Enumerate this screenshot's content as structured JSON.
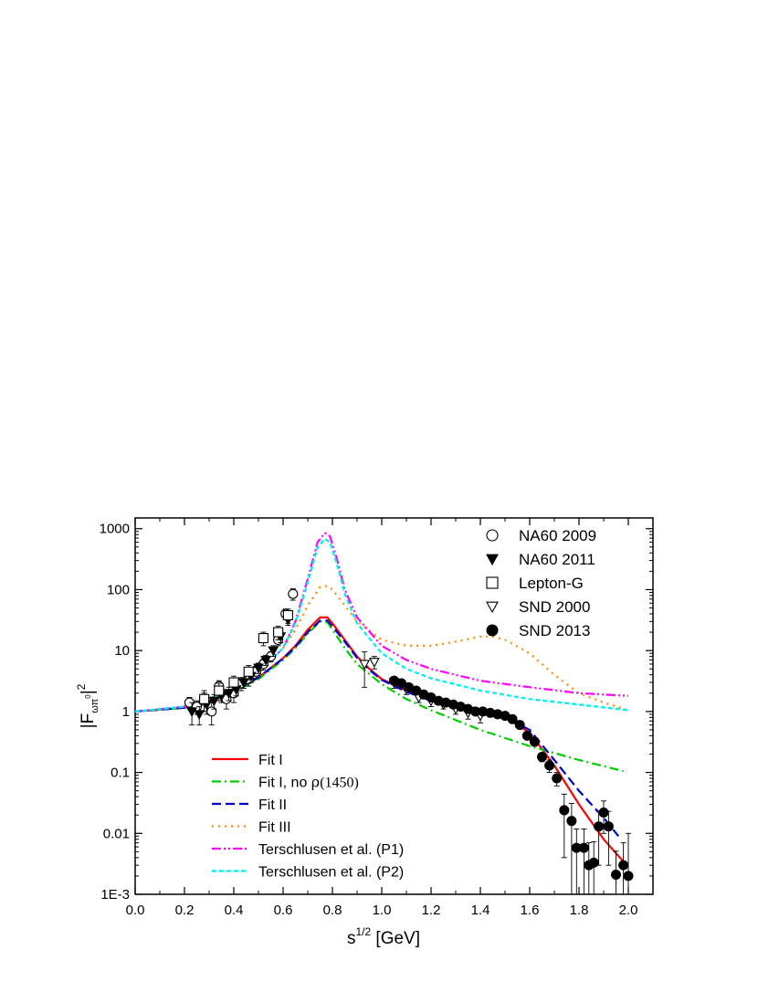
{
  "chart_data": {
    "type": "line",
    "title": "",
    "xlabel": "s",
    "xlabel_sup": "1/2",
    "xlabel_unit": " [GeV]",
    "ylabel": "|F",
    "ylabel_sub": "ωπ",
    "ylabel_subsup": "0",
    "ylabel_close": "|",
    "ylabel_sup": "2",
    "xlim": [
      0.0,
      2.1
    ],
    "ylim": [
      0.001,
      1500
    ],
    "yscale": "log",
    "xticks": [
      0.0,
      0.2,
      0.4,
      0.6,
      0.8,
      1.0,
      1.2,
      1.4,
      1.6,
      1.8,
      2.0
    ],
    "xtick_labels": [
      "0.0",
      "0.2",
      "0.4",
      "0.6",
      "0.8",
      "1.0",
      "1.2",
      "1.4",
      "1.6",
      "1.8",
      "2.0"
    ],
    "yticks": [
      0.001,
      0.01,
      0.1,
      1,
      10,
      100,
      1000
    ],
    "ytick_labels": [
      "1E-3",
      "0.01",
      "0.1",
      "1",
      "10",
      "100",
      "1000"
    ],
    "grid": false,
    "legend_data_position": "top-right",
    "legend_fits_position": "bottom-left",
    "data_series": [
      {
        "name": "NA60 2009",
        "marker": "open-circle",
        "x": [
          0.22,
          0.25,
          0.28,
          0.31,
          0.34,
          0.37,
          0.4,
          0.43,
          0.46,
          0.49,
          0.52,
          0.55,
          0.58,
          0.61,
          0.64
        ],
        "y": [
          1.4,
          1.2,
          1.5,
          1.0,
          2.6,
          1.6,
          2.0,
          2.9,
          3.4,
          4.5,
          6.0,
          8.0,
          15.0,
          40.0,
          85.0
        ],
        "yerr": [
          0.3,
          0.3,
          0.5,
          0.4,
          0.6,
          0.5,
          0.6,
          0.7,
          0.8,
          1.0,
          1.2,
          1.5,
          3.0,
          8.0,
          18.0
        ]
      },
      {
        "name": "NA60 2011",
        "marker": "filled-triangle-down",
        "x": [
          0.23,
          0.26,
          0.29,
          0.32,
          0.35,
          0.38,
          0.41,
          0.44,
          0.47,
          0.5,
          0.53,
          0.56,
          0.59,
          0.62
        ],
        "y": [
          1.0,
          0.9,
          1.3,
          1.5,
          1.8,
          2.0,
          2.3,
          3.0,
          3.8,
          5.2,
          7.0,
          10.0,
          17.0,
          32.0
        ],
        "yerr": [
          0.4,
          0.3,
          0.4,
          0.4,
          0.4,
          0.5,
          0.5,
          0.6,
          0.8,
          1.0,
          1.3,
          2.0,
          3.5,
          6.0
        ]
      },
      {
        "name": "Lepton-G",
        "marker": "open-square",
        "x": [
          0.28,
          0.34,
          0.4,
          0.46,
          0.52,
          0.58,
          0.62
        ],
        "y": [
          1.6,
          2.2,
          3.0,
          4.5,
          16.0,
          20.0,
          38.0
        ],
        "yerr": [
          0.6,
          0.7,
          0.8,
          1.2,
          4.0,
          5.0,
          10.0
        ]
      },
      {
        "name": "SND 2000",
        "marker": "open-triangle-down",
        "x": [
          0.93,
          0.97,
          1.05,
          1.1,
          1.15,
          1.2,
          1.25,
          1.3,
          1.35,
          1.4
        ],
        "y": [
          6.0,
          6.5,
          3.0,
          2.3,
          1.7,
          1.5,
          1.3,
          1.1,
          0.95,
          0.85
        ],
        "yerr": [
          3.5,
          1.5,
          0.6,
          0.4,
          0.3,
          0.3,
          0.2,
          0.2,
          0.2,
          0.2
        ]
      },
      {
        "name": "SND 2013",
        "marker": "filled-circle",
        "x": [
          1.05,
          1.08,
          1.11,
          1.14,
          1.17,
          1.2,
          1.23,
          1.26,
          1.29,
          1.32,
          1.35,
          1.38,
          1.41,
          1.44,
          1.47,
          1.5,
          1.53,
          1.56,
          1.59,
          1.62,
          1.65,
          1.68,
          1.71,
          1.74,
          1.77,
          1.79,
          1.82,
          1.84,
          1.86,
          1.88,
          1.9,
          1.92,
          1.95,
          1.98,
          2.0
        ],
        "y": [
          3.2,
          2.9,
          2.5,
          2.2,
          1.9,
          1.7,
          1.5,
          1.4,
          1.3,
          1.2,
          1.1,
          1.0,
          1.0,
          0.95,
          0.9,
          0.85,
          0.75,
          0.6,
          0.4,
          0.32,
          0.18,
          0.13,
          0.08,
          0.024,
          0.016,
          0.0058,
          0.0058,
          0.003,
          0.0033,
          0.013,
          0.022,
          0.013,
          0.0021,
          0.003,
          0.002
        ],
        "yerr": [
          0.4,
          0.3,
          0.3,
          0.2,
          0.2,
          0.2,
          0.15,
          0.15,
          0.15,
          0.1,
          0.1,
          0.1,
          0.1,
          0.1,
          0.1,
          0.1,
          0.08,
          0.07,
          0.05,
          0.05,
          0.03,
          0.03,
          0.02,
          0.02,
          0.015,
          0.006,
          0.006,
          0.004,
          0.004,
          0.01,
          0.012,
          0.01,
          0.003,
          0.004,
          0.008
        ]
      }
    ],
    "curve_series": [
      {
        "name": "Fit I",
        "color": "#ff0000",
        "dash": "solid",
        "x": [
          0.0,
          0.2,
          0.3,
          0.4,
          0.5,
          0.6,
          0.65,
          0.7,
          0.75,
          0.78,
          0.8,
          0.85,
          0.9,
          0.95,
          1.0,
          1.1,
          1.2,
          1.3,
          1.4,
          1.5,
          1.6,
          1.7,
          1.8,
          1.9,
          2.0
        ],
        "y": [
          1.0,
          1.15,
          1.5,
          2.2,
          3.6,
          7.5,
          12.0,
          22.0,
          35.0,
          35.0,
          28.0,
          15.0,
          8.0,
          5.0,
          3.4,
          2.2,
          1.5,
          1.2,
          1.0,
          0.8,
          0.45,
          0.13,
          0.03,
          0.008,
          0.0028
        ]
      },
      {
        "name": "Fit I, no ",
        "name_greek": "ρ",
        "name_rest": "(1450)",
        "color": "#00cc00",
        "dash": "dashdot",
        "x": [
          0.0,
          0.2,
          0.3,
          0.4,
          0.5,
          0.6,
          0.65,
          0.7,
          0.75,
          0.78,
          0.8,
          0.85,
          0.9,
          1.0,
          1.1,
          1.2,
          1.4,
          1.6,
          1.8,
          1.98
        ],
        "y": [
          1.0,
          1.15,
          1.45,
          2.1,
          3.4,
          7.0,
          11.0,
          19.0,
          30.0,
          29.0,
          22.0,
          11.0,
          6.0,
          2.8,
          1.6,
          1.05,
          0.5,
          0.27,
          0.16,
          0.105
        ]
      },
      {
        "name": "Fit II",
        "color": "#0000cc",
        "dash": "dash",
        "x": [
          0.0,
          0.2,
          0.3,
          0.4,
          0.5,
          0.6,
          0.65,
          0.7,
          0.75,
          0.78,
          0.8,
          0.85,
          0.9,
          0.95,
          1.0,
          1.1,
          1.2,
          1.3,
          1.4,
          1.5,
          1.6,
          1.7,
          1.8,
          1.9,
          1.96
        ],
        "y": [
          1.0,
          1.15,
          1.5,
          2.2,
          3.6,
          7.4,
          11.5,
          20.0,
          31.0,
          31.0,
          25.0,
          14.0,
          7.6,
          4.8,
          3.3,
          2.1,
          1.5,
          1.2,
          1.0,
          0.8,
          0.5,
          0.16,
          0.05,
          0.018,
          0.009
        ]
      },
      {
        "name": "Fit III",
        "color": "#ff8800",
        "dash": "dot",
        "x": [
          0.0,
          0.2,
          0.3,
          0.4,
          0.5,
          0.6,
          0.65,
          0.7,
          0.75,
          0.78,
          0.8,
          0.85,
          0.9,
          1.0,
          1.1,
          1.2,
          1.3,
          1.4,
          1.45,
          1.5,
          1.6,
          1.7,
          1.8,
          1.9,
          2.0
        ],
        "y": [
          1.0,
          1.2,
          1.6,
          2.4,
          4.2,
          11.0,
          22.0,
          55.0,
          110.0,
          115.0,
          100.0,
          55.0,
          30.0,
          15.0,
          12.0,
          12.0,
          14.0,
          17.0,
          17.0,
          15.0,
          9.0,
          4.0,
          2.0,
          1.4,
          1.05
        ]
      },
      {
        "name": "Terschlusen et al. (P1)",
        "color": "#ff00ff",
        "dash": "dashdotdot",
        "x": [
          0.0,
          0.2,
          0.3,
          0.4,
          0.5,
          0.6,
          0.65,
          0.7,
          0.74,
          0.77,
          0.79,
          0.82,
          0.85,
          0.9,
          1.0,
          1.1,
          1.2,
          1.4,
          1.6,
          1.8,
          2.0
        ],
        "y": [
          1.0,
          1.2,
          1.6,
          2.4,
          4.3,
          11.0,
          30.0,
          150.0,
          600.0,
          850.0,
          750.0,
          300.0,
          100.0,
          35.0,
          12.0,
          7.0,
          5.0,
          3.2,
          2.5,
          2.0,
          1.8
        ]
      },
      {
        "name": "Terschlusen et al. (P2)",
        "color": "#00eeee",
        "dash": "shortdash",
        "x": [
          0.0,
          0.2,
          0.3,
          0.4,
          0.5,
          0.6,
          0.65,
          0.7,
          0.74,
          0.77,
          0.79,
          0.82,
          0.85,
          0.9,
          1.0,
          1.1,
          1.2,
          1.4,
          1.6,
          1.8,
          2.0
        ],
        "y": [
          1.0,
          1.2,
          1.6,
          2.4,
          4.3,
          11.0,
          28.0,
          130.0,
          500.0,
          680.0,
          600.0,
          250.0,
          85.0,
          28.0,
          9.0,
          5.0,
          3.5,
          2.2,
          1.6,
          1.3,
          1.05
        ]
      }
    ]
  }
}
